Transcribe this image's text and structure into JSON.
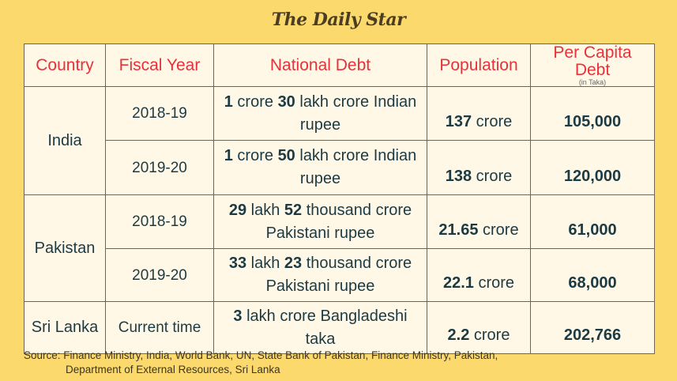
{
  "logo_text": "The Daily Star",
  "headers": {
    "country": "Country",
    "fiscal_year": "Fiscal Year",
    "national_debt": "National Debt",
    "population": "Population",
    "per_capita_debt": "Per Capita Debt",
    "per_capita_unit": "(in Taka)"
  },
  "rows": [
    {
      "country": "India",
      "fiscal_year": "2018-19",
      "debt": [
        {
          "t": "1",
          "b": true
        },
        {
          "t": " crore ",
          "b": false
        },
        {
          "t": "30",
          "b": true
        },
        {
          "t": " lakh crore Indian rupee",
          "b": false
        }
      ],
      "population": [
        {
          "t": "137",
          "b": true
        },
        {
          "t": " crore",
          "b": false
        }
      ],
      "per_capita": "105,000"
    },
    {
      "country": "",
      "fiscal_year": "2019-20",
      "debt": [
        {
          "t": "1",
          "b": true
        },
        {
          "t": " crore ",
          "b": false
        },
        {
          "t": "50",
          "b": true
        },
        {
          "t": " lakh crore Indian rupee",
          "b": false
        }
      ],
      "population": [
        {
          "t": "138",
          "b": true
        },
        {
          "t": " crore",
          "b": false
        }
      ],
      "per_capita": "120,000"
    },
    {
      "country": "Pakistan",
      "fiscal_year": "2018-19",
      "debt": [
        {
          "t": "29",
          "b": true
        },
        {
          "t": " lakh ",
          "b": false
        },
        {
          "t": "52",
          "b": true
        },
        {
          "t": " thousand crore Pakistani rupee",
          "b": false
        }
      ],
      "population": [
        {
          "t": "21.65",
          "b": true
        },
        {
          "t": " crore",
          "b": false
        }
      ],
      "per_capita": "61,000"
    },
    {
      "country": "",
      "fiscal_year": "2019-20",
      "debt": [
        {
          "t": "33",
          "b": true
        },
        {
          "t": " lakh ",
          "b": false
        },
        {
          "t": "23",
          "b": true
        },
        {
          "t": " thousand crore Pakistani rupee",
          "b": false
        }
      ],
      "population": [
        {
          "t": "22.1",
          "b": true
        },
        {
          "t": " crore",
          "b": false
        }
      ],
      "per_capita": "68,000"
    },
    {
      "country": "Sri Lanka",
      "fiscal_year": "Current time",
      "debt": [
        {
          "t": "3",
          "b": true
        },
        {
          "t": " lakh crore Bangladeshi taka",
          "b": false
        }
      ],
      "population": [
        {
          "t": "2.2",
          "b": true
        },
        {
          "t": " crore",
          "b": false
        }
      ],
      "per_capita": "202,766"
    }
  ],
  "source_line1": "Source: Finance Ministry, India, World Bank, UN, State Bank of Pakistan, Finance Ministry, Pakistan,",
  "source_line2": "Department of External Resources, Sri Lanka",
  "colors": {
    "background": "#fcd96d",
    "header_text": "#e8313a",
    "body_text": "#1c3a44",
    "cell_bg": "#fff8e6"
  }
}
